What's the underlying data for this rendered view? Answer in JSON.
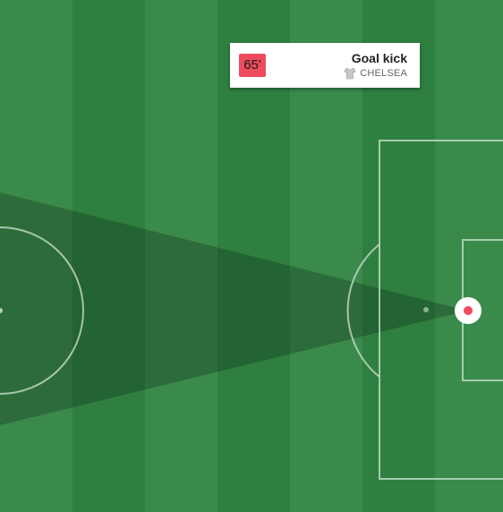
{
  "event": {
    "minute": "65'",
    "title": "Goal kick",
    "team": "CHELSEA",
    "team_icon": "shirt-icon",
    "minute_color": "#ee4b5f"
  },
  "pitch": {
    "stripe_light": "#3a8a4c",
    "stripe_dark": "#2f7f41",
    "line_color": "#cfe3d0",
    "marker_color": "#ee4b5f"
  }
}
